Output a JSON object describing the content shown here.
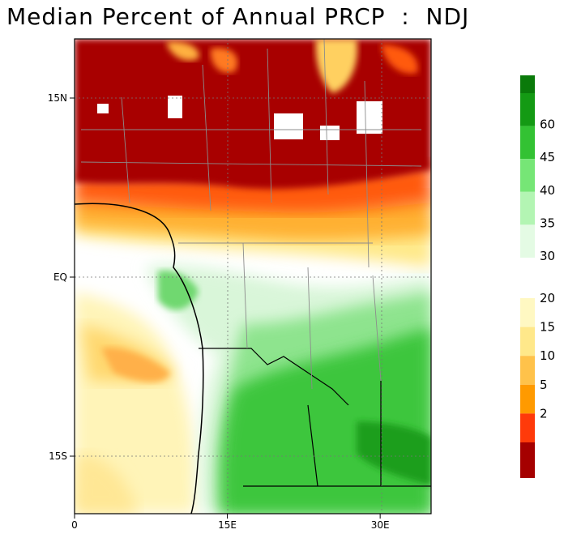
{
  "title": "Median Percent of Annual PRCP  :  NDJ",
  "map": {
    "y_ticks": [
      {
        "label": "15N",
        "lat": 15
      },
      {
        "label": "EQ",
        "lat": 0
      },
      {
        "label": "15S",
        "lat": -15
      }
    ],
    "x_ticks": [
      {
        "label": "0",
        "lon": 0
      },
      {
        "label": "15E",
        "lon": 15
      },
      {
        "label": "30E",
        "lon": 30
      }
    ]
  },
  "colorbar": {
    "green_levels": [
      {
        "label": "60",
        "color": "#149a14"
      },
      {
        "label": "45",
        "color": "#33c233"
      },
      {
        "label": "40",
        "color": "#76e676"
      },
      {
        "label": "35",
        "color": "#b3f5b3"
      },
      {
        "label": "30",
        "color": "#e4fbe4"
      }
    ],
    "top_cap_color": "#0a7a0a",
    "warm_levels": [
      {
        "label": "20",
        "color": "#fff8c2"
      },
      {
        "label": "15",
        "color": "#ffe88a"
      },
      {
        "label": "10",
        "color": "#ffc24a"
      },
      {
        "label": "5",
        "color": "#ff9a00"
      },
      {
        "label": "2",
        "color": "#ff3a0a"
      }
    ],
    "bottom_cap_color": "#a50000"
  }
}
